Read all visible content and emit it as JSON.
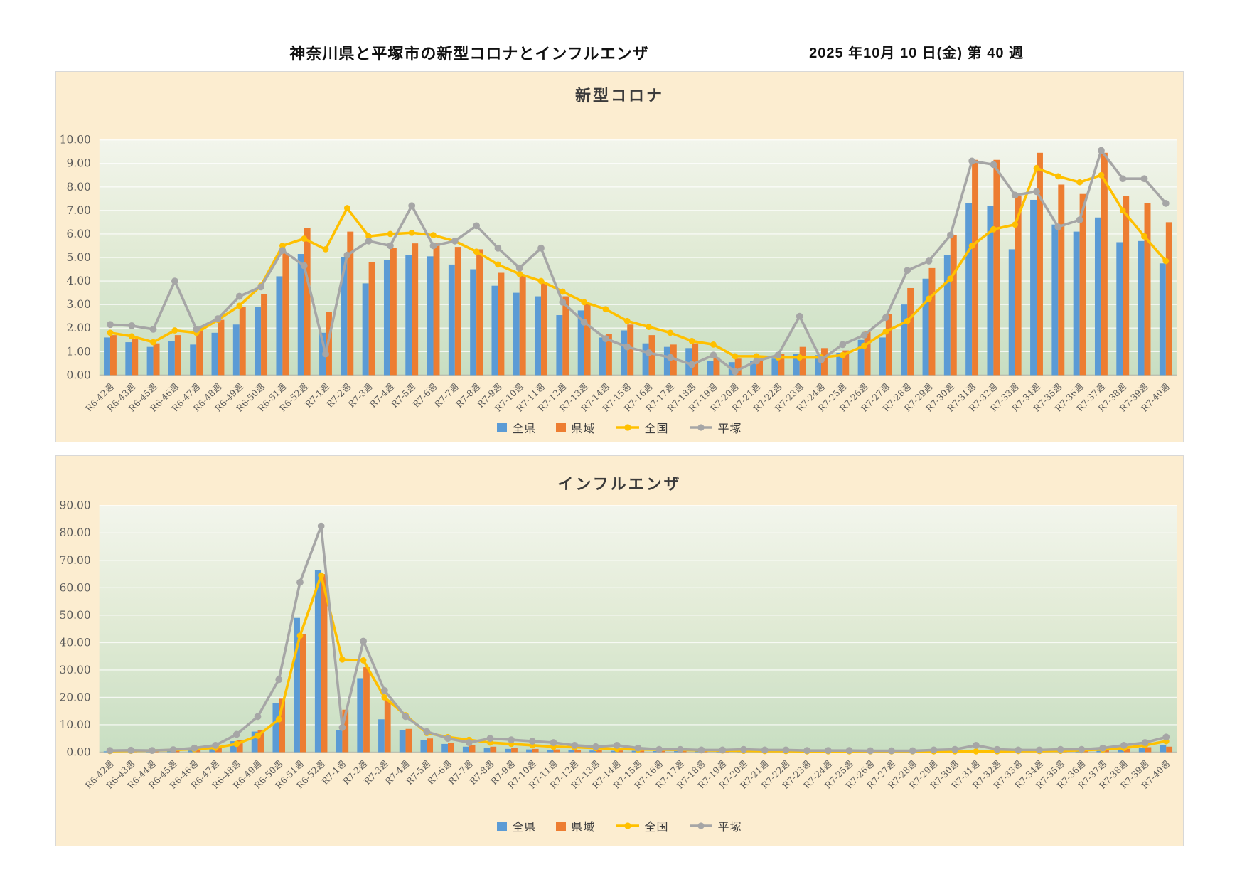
{
  "page": {
    "title": "神奈川県と平塚市の新型コロナとインフルエンザ",
    "date_label": "2025 年10月 10 日(金)  第 40 週"
  },
  "colors": {
    "zenken": "#5B9BD5",
    "keniki": "#ED7D31",
    "zenkoku": "#FFC000",
    "hiratsuka": "#A6A6A6",
    "card_bg": "#fcedd0",
    "tick_text": "#595959"
  },
  "chart_data": [
    {
      "type": "bar",
      "title": "新型コロナ",
      "ylim": [
        0,
        10
      ],
      "ystep": 1,
      "grid": true,
      "legend_position": "bottom",
      "xlabel": "",
      "ylabel": "",
      "categories": [
        "R6-42週",
        "R6-43週",
        "R6-45週",
        "R6-46週",
        "R6-47週",
        "R6-48週",
        "R6-49週",
        "R6-50週",
        "R6-51週",
        "R6-52週",
        "R7-1週",
        "R7-2週",
        "R7-3週",
        "R7-4週",
        "R7-5週",
        "R7-6週",
        "R7-7週",
        "R7-8週",
        "R7-9週",
        "R7-10週",
        "R7-11週",
        "R7-12週",
        "R7-13週",
        "R7-14週",
        "R7-15週",
        "R7-16週",
        "R7-17週",
        "R7-18週",
        "R7-19週",
        "R7-20週",
        "R7-21週",
        "R7-22週",
        "R7-23週",
        "R7-24週",
        "R7-25週",
        "R7-26週",
        "R7-27週",
        "R7-28週",
        "R7-29週",
        "R7-30週",
        "R7-31週",
        "R7-32週",
        "R7-33週",
        "R7-34週",
        "R7-35週",
        "R7-36週",
        "R7-37週",
        "R7-38週",
        "R7-39週",
        "R7-40週"
      ],
      "series": [
        {
          "name": "全県",
          "kind": "bar",
          "color": "#5B9BD5",
          "values": [
            1.6,
            1.4,
            1.2,
            1.45,
            1.3,
            1.8,
            2.15,
            2.9,
            4.2,
            5.15,
            1.8,
            5.0,
            3.9,
            4.9,
            5.1,
            5.05,
            4.7,
            4.5,
            3.8,
            3.5,
            3.35,
            2.55,
            2.75,
            1.6,
            1.9,
            1.35,
            1.2,
            1.15,
            0.6,
            0.55,
            0.6,
            0.7,
            0.9,
            0.85,
            0.95,
            1.5,
            1.6,
            3.0,
            4.1,
            5.1,
            7.3,
            7.2,
            5.35,
            7.45,
            6.4,
            6.1,
            6.7,
            5.65,
            5.7,
            4.75
          ]
        },
        {
          "name": "県域",
          "kind": "bar",
          "color": "#ED7D31",
          "values": [
            1.7,
            1.55,
            1.35,
            1.7,
            2.0,
            2.35,
            2.9,
            3.45,
            5.2,
            6.25,
            2.7,
            6.1,
            4.8,
            5.4,
            5.6,
            5.6,
            5.45,
            5.35,
            4.35,
            4.25,
            3.9,
            3.35,
            3.05,
            1.75,
            2.15,
            1.7,
            1.3,
            1.35,
            0.75,
            0.7,
            0.7,
            0.9,
            1.2,
            1.15,
            1.05,
            1.85,
            2.6,
            3.7,
            4.55,
            5.95,
            9.15,
            9.15,
            7.6,
            9.45,
            8.1,
            7.7,
            9.45,
            7.6,
            7.3,
            6.5
          ]
        },
        {
          "name": "全国",
          "kind": "line",
          "color": "#FFC000",
          "values": [
            1.8,
            1.65,
            1.4,
            1.9,
            1.8,
            2.35,
            2.95,
            3.8,
            5.5,
            5.8,
            5.35,
            7.1,
            5.9,
            6.0,
            6.05,
            5.95,
            5.7,
            5.25,
            4.7,
            4.3,
            4.0,
            3.55,
            3.1,
            2.8,
            2.3,
            2.05,
            1.8,
            1.45,
            1.3,
            0.8,
            0.8,
            0.75,
            0.75,
            0.75,
            0.85,
            1.25,
            1.85,
            2.3,
            3.25,
            4.1,
            5.5,
            6.2,
            6.4,
            8.8,
            8.45,
            8.2,
            8.5,
            7.0,
            5.9,
            4.85
          ]
        },
        {
          "name": "平塚",
          "kind": "line",
          "color": "#A6A6A6",
          "values": [
            2.15,
            2.1,
            1.95,
            4.0,
            1.95,
            2.4,
            3.35,
            3.75,
            5.3,
            4.65,
            0.9,
            5.1,
            5.7,
            5.5,
            7.2,
            5.5,
            5.7,
            6.35,
            5.4,
            4.55,
            5.4,
            3.1,
            2.25,
            1.55,
            1.2,
            0.95,
            0.75,
            0.45,
            0.85,
            0.15,
            0.6,
            0.85,
            2.5,
            0.65,
            1.3,
            1.7,
            2.45,
            4.45,
            4.85,
            5.95,
            9.1,
            8.95,
            7.65,
            7.8,
            6.3,
            6.6,
            9.55,
            8.35,
            8.35,
            7.3
          ]
        }
      ]
    },
    {
      "type": "bar",
      "title": "インフルエンザ",
      "ylim": [
        0,
        90
      ],
      "ystep": 10,
      "grid": true,
      "legend_position": "bottom",
      "xlabel": "",
      "ylabel": "",
      "categories": [
        "R6-42週",
        "R6-43週",
        "R6-44週",
        "R6-45週",
        "R6-46週",
        "R6-47週",
        "R6-48週",
        "R6-49週",
        "R6-50週",
        "R6-51週",
        "R6-52週",
        "R7-1週",
        "R7-2週",
        "R7-3週",
        "R7-4週",
        "R7-5週",
        "R7-6週",
        "R7-7週",
        "R7-8週",
        "R7-9週",
        "R7-10週",
        "R7-11週",
        "R7-12週",
        "R7-13週",
        "R7-14週",
        "R7-15週",
        "R7-16週",
        "R7-17週",
        "R7-18週",
        "R7-19週",
        "R7-20週",
        "R7-21週",
        "R7-22週",
        "R7-23週",
        "R7-24週",
        "R7-25週",
        "R7-26週",
        "R7-27週",
        "R7-28週",
        "R7-29週",
        "R7-30週",
        "R7-31週",
        "R7-32週",
        "R7-33週",
        "R7-34週",
        "R7-35週",
        "R7-36週",
        "R7-37週",
        "R7-38週",
        "R7-39週",
        "R7-40週"
      ],
      "series": [
        {
          "name": "全県",
          "kind": "bar",
          "color": "#5B9BD5",
          "values": [
            0.3,
            0.4,
            0.5,
            0.8,
            1.2,
            2.0,
            4.0,
            7.5,
            18.0,
            49.0,
            66.5,
            8.0,
            27.0,
            12.0,
            8.0,
            4.5,
            3.0,
            2.0,
            1.5,
            1.2,
            1.0,
            0.8,
            0.7,
            0.6,
            0.5,
            0.5,
            0.4,
            0.4,
            0.3,
            0.3,
            0.3,
            0.3,
            0.2,
            0.2,
            0.2,
            0.2,
            0.2,
            0.2,
            0.2,
            0.2,
            0.3,
            0.3,
            0.2,
            0.2,
            0.2,
            0.3,
            0.3,
            0.5,
            1.0,
            1.5,
            2.5
          ]
        },
        {
          "name": "県域",
          "kind": "bar",
          "color": "#ED7D31",
          "values": [
            0.3,
            0.4,
            0.5,
            0.9,
            1.3,
            2.2,
            4.5,
            8.0,
            19.5,
            43.0,
            65.0,
            15.5,
            31.0,
            19.0,
            8.5,
            5.0,
            3.5,
            2.5,
            2.0,
            1.5,
            1.2,
            1.0,
            0.8,
            0.7,
            0.6,
            0.5,
            0.5,
            0.4,
            0.4,
            0.3,
            0.3,
            0.3,
            0.3,
            0.2,
            0.2,
            0.2,
            0.2,
            0.2,
            0.3,
            0.3,
            0.3,
            0.3,
            0.3,
            0.2,
            0.3,
            0.3,
            0.4,
            0.7,
            1.2,
            1.8,
            2.0
          ]
        },
        {
          "name": "全国",
          "kind": "line",
          "color": "#FFC000",
          "values": [
            0.4,
            0.5,
            0.6,
            0.8,
            1.1,
            1.6,
            3.0,
            6.0,
            12.0,
            42.5,
            64.5,
            33.8,
            33.5,
            20.0,
            13.5,
            7.0,
            5.5,
            4.5,
            3.5,
            3.0,
            2.5,
            2.0,
            1.8,
            1.5,
            1.2,
            1.0,
            0.9,
            0.8,
            0.7,
            0.6,
            0.5,
            0.4,
            0.4,
            0.3,
            0.3,
            0.3,
            0.3,
            0.3,
            0.3,
            0.3,
            0.3,
            0.3,
            0.3,
            0.4,
            0.4,
            0.5,
            0.7,
            1.0,
            1.5,
            2.5,
            4.0
          ]
        },
        {
          "name": "平塚",
          "kind": "line",
          "color": "#A6A6A6",
          "values": [
            0.6,
            0.7,
            0.6,
            0.9,
            1.5,
            2.5,
            6.5,
            13.0,
            26.5,
            62.0,
            82.5,
            9.0,
            40.5,
            22.5,
            13.0,
            7.5,
            5.0,
            3.5,
            5.0,
            4.5,
            4.0,
            3.5,
            2.5,
            2.0,
            2.5,
            1.5,
            1.0,
            1.0,
            0.8,
            0.8,
            1.0,
            0.8,
            0.8,
            0.6,
            0.6,
            0.6,
            0.5,
            0.5,
            0.5,
            0.8,
            1.0,
            2.5,
            1.0,
            0.8,
            0.8,
            1.0,
            1.0,
            1.5,
            2.5,
            3.5,
            5.5
          ]
        }
      ]
    }
  ]
}
